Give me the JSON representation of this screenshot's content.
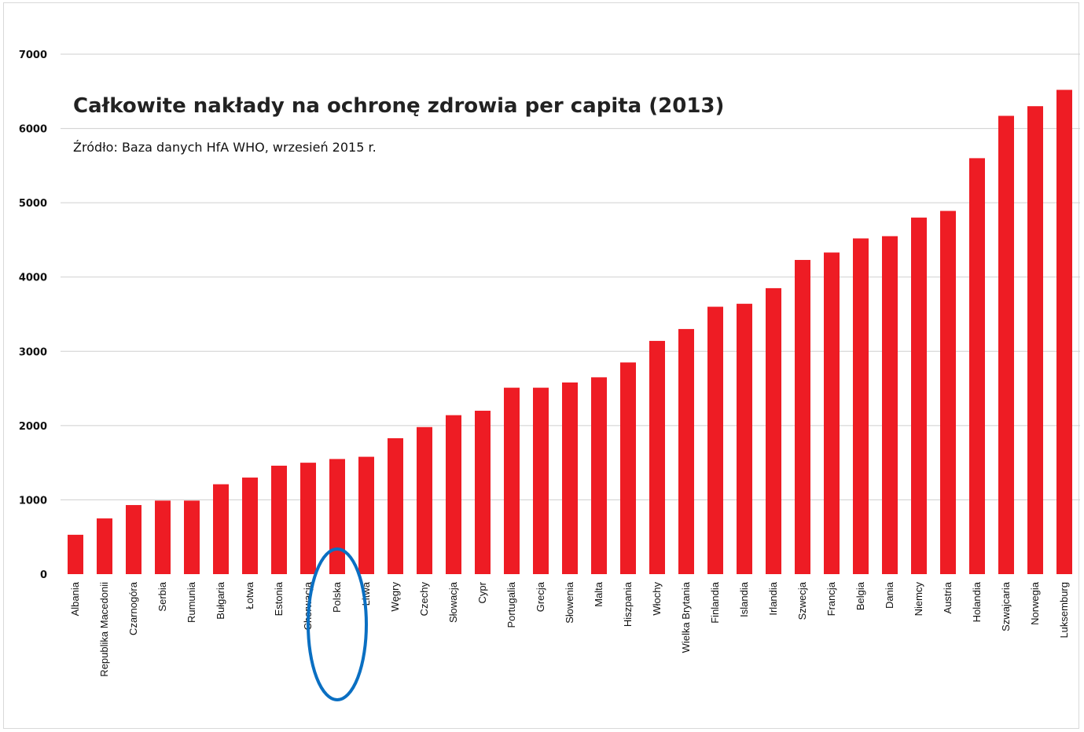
{
  "chart_data": {
    "type": "bar",
    "title": "Całkowite nakłady na ochronę zdrowia per capita (2013)",
    "subtitle": "Źródło: Baza danych HfA WHO, wrzesień 2015 r.",
    "xlabel": "",
    "ylabel": "",
    "ylim": [
      0,
      7000
    ],
    "yticks": [
      "0",
      "1000",
      "2000",
      "3000",
      "4000",
      "5000",
      "6000",
      "7000"
    ],
    "grid": true,
    "legend": "none",
    "bar_color": "#ee1c24",
    "highlight_color": "#0a6fc2",
    "highlighted_category": "Polska",
    "categories": [
      "Albania",
      "Republika Macedonii",
      "Czarnogóra",
      "Serbia",
      "Rumunia",
      "Bułgaria",
      "Łotwa",
      "Estonia",
      "Chorwacja",
      "Polska",
      "Litwa",
      "Węgry",
      "Czechy",
      "Słowacja",
      "Cypr",
      "Portugalia",
      "Grecja",
      "Słowenia",
      "Malta",
      "Hiszpania",
      "Włochy",
      "Wielka Brytania",
      "Finlandia",
      "Islandia",
      "Irlandia",
      "Szwecja",
      "Francja",
      "Belgia",
      "Dania",
      "Niemcy",
      "Austria",
      "Holandia",
      "Szwajcaria",
      "Norwegia",
      "Luksemburg"
    ],
    "values": [
      530,
      750,
      930,
      990,
      990,
      1210,
      1300,
      1460,
      1500,
      1550,
      1580,
      1830,
      1980,
      2140,
      2200,
      2510,
      2510,
      2580,
      2650,
      2850,
      3140,
      3300,
      3600,
      3640,
      3850,
      4230,
      4330,
      4520,
      4550,
      4800,
      4890,
      5600,
      6170,
      6300,
      6520
    ]
  }
}
